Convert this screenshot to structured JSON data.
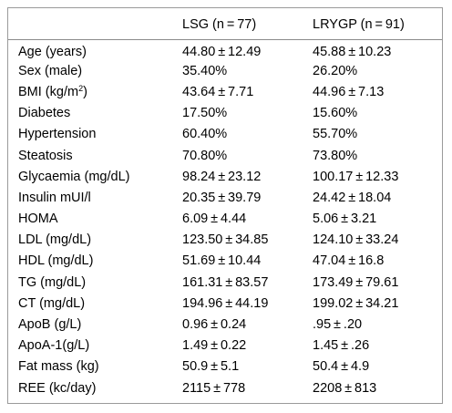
{
  "table": {
    "headers": [
      "",
      "LSG (n = 77)",
      "LRYGP (n = 91)"
    ],
    "rows": [
      {
        "label": "Age (years)",
        "lsg": "44.80 ± 12.49",
        "lrygp": "45.88 ± 10.23"
      },
      {
        "label": "Sex (male)",
        "lsg": "35.40%",
        "lrygp": "26.20%"
      },
      {
        "label_pre": "BMI (kg/m",
        "label_sup": "2",
        "label_post": ")",
        "lsg": "43.64 ± 7.71",
        "lrygp": "44.96 ± 7.13"
      },
      {
        "label": "Diabetes",
        "lsg": "17.50%",
        "lrygp": "15.60%"
      },
      {
        "label": "Hypertension",
        "lsg": "60.40%",
        "lrygp": "55.70%"
      },
      {
        "label": "Steatosis",
        "lsg": "70.80%",
        "lrygp": "73.80%"
      },
      {
        "label": "Glycaemia (mg/dL)",
        "lsg": "98.24 ± 23.12",
        "lrygp": "100.17 ± 12.33"
      },
      {
        "label": "Insulin mUI/l",
        "lsg": "20.35 ± 39.79",
        "lrygp": "24.42 ± 18.04"
      },
      {
        "label": "HOMA",
        "lsg": "6.09 ± 4.44",
        "lrygp": "5.06 ± 3.21"
      },
      {
        "label": "LDL (mg/dL)",
        "lsg": "123.50 ± 34.85",
        "lrygp": "124.10 ± 33.24"
      },
      {
        "label": "HDL (mg/dL)",
        "lsg": "51.69 ± 10.44",
        "lrygp": "47.04 ± 16.8"
      },
      {
        "label": "TG (mg/dL)",
        "lsg": "161.31 ± 83.57",
        "lrygp": "173.49 ± 79.61"
      },
      {
        "label": "CT (mg/dL)",
        "lsg": "194.96 ± 44.19",
        "lrygp": "199.02 ± 34.21"
      },
      {
        "label": "ApoB (g/L)",
        "lsg": "0.96 ± 0.24",
        "lrygp": ".95 ± .20"
      },
      {
        "label": "ApoA-1(g/L)",
        "lsg": "1.49 ± 0.22",
        "lrygp": "1.45 ± .26"
      },
      {
        "label": "Fat mass (kg)",
        "lsg": "50.9 ± 5.1",
        "lrygp": "50.4 ± 4.9"
      },
      {
        "label": "REE (kc/day)",
        "lsg": "2115 ± 778",
        "lrygp": "2208 ± 813"
      }
    ]
  }
}
